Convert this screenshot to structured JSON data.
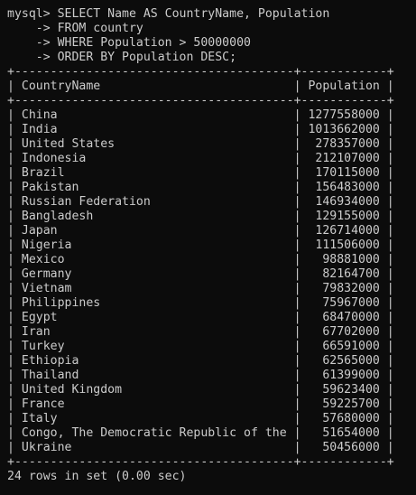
{
  "command": {
    "prompt": "mysql>",
    "lines": [
      "SELECT Name AS CountryName, Population",
      "FROM country",
      "WHERE Population > 50000000",
      "ORDER BY Population DESC;"
    ],
    "continuation": "->"
  },
  "table": {
    "headers": [
      "CountryName",
      "Population"
    ],
    "rows": [
      [
        "China",
        "1277558000"
      ],
      [
        "India",
        "1013662000"
      ],
      [
        "United States",
        "278357000"
      ],
      [
        "Indonesia",
        "212107000"
      ],
      [
        "Brazil",
        "170115000"
      ],
      [
        "Pakistan",
        "156483000"
      ],
      [
        "Russian Federation",
        "146934000"
      ],
      [
        "Bangladesh",
        "129155000"
      ],
      [
        "Japan",
        "126714000"
      ],
      [
        "Nigeria",
        "111506000"
      ],
      [
        "Mexico",
        "98881000"
      ],
      [
        "Germany",
        "82164700"
      ],
      [
        "Vietnam",
        "79832000"
      ],
      [
        "Philippines",
        "75967000"
      ],
      [
        "Egypt",
        "68470000"
      ],
      [
        "Iran",
        "67702000"
      ],
      [
        "Turkey",
        "66591000"
      ],
      [
        "Ethiopia",
        "62565000"
      ],
      [
        "Thailand",
        "61399000"
      ],
      [
        "United Kingdom",
        "59623400"
      ],
      [
        "France",
        "59225700"
      ],
      [
        "Italy",
        "57680000"
      ],
      [
        "Congo, The Democratic Republic of the",
        "51654000"
      ],
      [
        "Ukraine",
        "50456000"
      ]
    ]
  },
  "result_summary": "24 rows in set (0.00 sec)"
}
